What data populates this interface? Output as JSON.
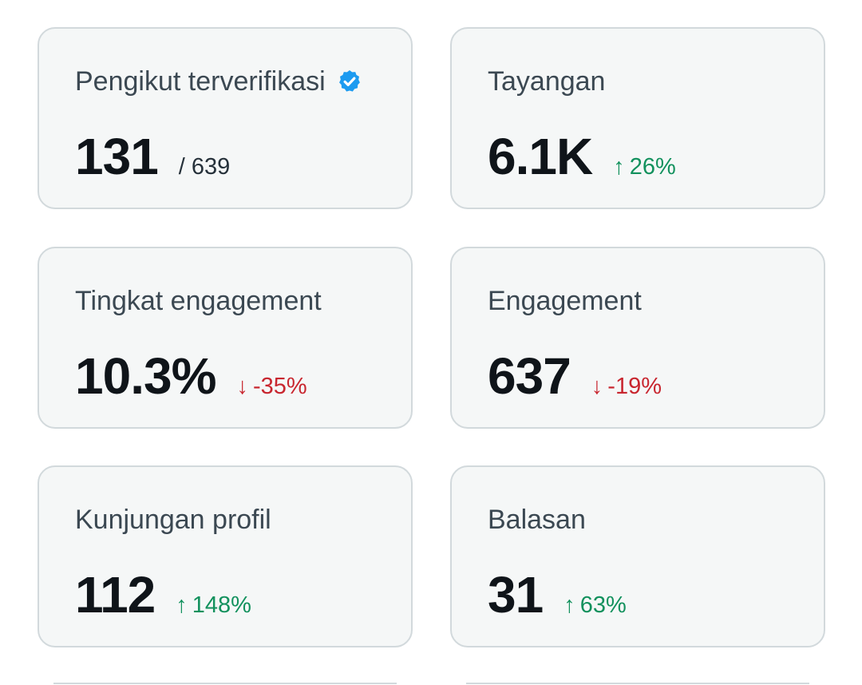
{
  "colors": {
    "card_background": "#f5f7f7",
    "card_border": "#d2d9dc",
    "positive": "#12915d",
    "negative": "#c8262f",
    "verified": "#1d9bf0"
  },
  "cards": [
    {
      "title": "Pengikut terverifikasi",
      "icon": "verified-badge-icon",
      "value": "131",
      "sub_value": "/ 639"
    },
    {
      "title": "Tayangan",
      "value": "6.1K",
      "delta": {
        "direction": "up",
        "arrow": "↑",
        "text": "26%"
      }
    },
    {
      "title": "Tingkat engagement",
      "value": "10.3%",
      "delta": {
        "direction": "down",
        "arrow": "↓",
        "text": "-35%"
      }
    },
    {
      "title": "Engagement",
      "value": "637",
      "delta": {
        "direction": "down",
        "arrow": "↓",
        "text": "-19%"
      }
    },
    {
      "title": "Kunjungan profil",
      "value": "112",
      "delta": {
        "direction": "up",
        "arrow": "↑",
        "text": "148%"
      }
    },
    {
      "title": "Balasan",
      "value": "31",
      "delta": {
        "direction": "up",
        "arrow": "↑",
        "text": "63%"
      }
    }
  ]
}
